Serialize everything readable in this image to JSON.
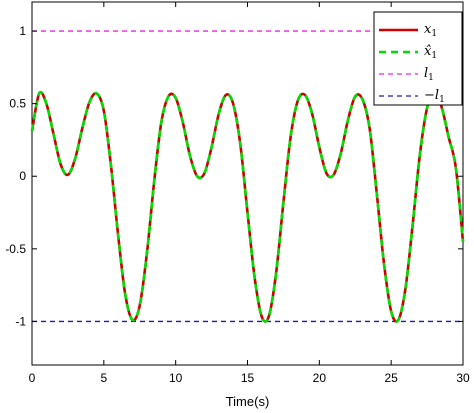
{
  "chart_data": {
    "type": "line",
    "title": "",
    "xlabel": "Time(s)",
    "ylabel": "",
    "xlim": [
      0,
      30
    ],
    "ylim": [
      -1.3,
      1.2
    ],
    "xticks": [
      0,
      5,
      10,
      15,
      20,
      25,
      30
    ],
    "xtick_labels": [
      "0",
      "5",
      "10",
      "15",
      "20",
      "25",
      "30"
    ],
    "yticks": [
      1,
      0.5,
      0,
      -0.5,
      -1
    ],
    "ytick_labels": [
      "1",
      "0.5",
      "0",
      "-0.5",
      "-1"
    ],
    "grid": false,
    "legend_position": "top-right",
    "series": [
      {
        "name": "x1",
        "label_main": "x",
        "label_sub": "1",
        "color": "#cc0000",
        "style": "solid",
        "x": [
          0,
          0.5,
          1,
          1.5,
          2,
          2.5,
          3,
          3.5,
          4,
          4.5,
          5,
          5.5,
          6,
          6.5,
          7,
          7.5,
          8,
          8.5,
          9,
          9.5,
          10,
          10.5,
          11,
          11.5,
          12,
          12.5,
          13,
          13.5,
          14,
          14.5,
          15,
          15.5,
          16,
          16.5,
          17,
          17.5,
          18,
          18.5,
          19,
          19.5,
          20,
          20.5,
          21,
          21.5,
          22,
          22.5,
          23,
          23.5,
          24,
          24.5,
          25,
          25.5,
          26,
          26.5,
          27,
          27.5,
          28,
          28.5,
          29,
          29.5,
          30
        ],
        "values": [
          0.31,
          0.57,
          0.5,
          0.29,
          0.08,
          0.01,
          0.12,
          0.33,
          0.51,
          0.57,
          0.45,
          0.07,
          -0.41,
          -0.82,
          -0.99,
          -0.89,
          -0.53,
          -0.04,
          0.37,
          0.55,
          0.54,
          0.37,
          0.14,
          0.0,
          0.02,
          0.2,
          0.43,
          0.56,
          0.5,
          0.22,
          -0.25,
          -0.7,
          -0.97,
          -0.96,
          -0.66,
          -0.18,
          0.27,
          0.52,
          0.56,
          0.43,
          0.2,
          0.02,
          0.01,
          0.16,
          0.39,
          0.55,
          0.53,
          0.33,
          -0.12,
          -0.6,
          -0.93,
          -0.99,
          -0.77,
          -0.33,
          0.15,
          0.47,
          0.57,
          0.48,
          0.27,
          0.06,
          -0.45
        ]
      },
      {
        "name": "x1_hat",
        "label_main": "x̂",
        "label_sub": "1",
        "color": "#00dd00",
        "style": "dashed",
        "x": [
          0,
          0.5,
          1,
          1.5,
          2,
          2.5,
          3,
          3.5,
          4,
          4.5,
          5,
          5.5,
          6,
          6.5,
          7,
          7.5,
          8,
          8.5,
          9,
          9.5,
          10,
          10.5,
          11,
          11.5,
          12,
          12.5,
          13,
          13.5,
          14,
          14.5,
          15,
          15.5,
          16,
          16.5,
          17,
          17.5,
          18,
          18.5,
          19,
          19.5,
          20,
          20.5,
          21,
          21.5,
          22,
          22.5,
          23,
          23.5,
          24,
          24.5,
          25,
          25.5,
          26,
          26.5,
          27,
          27.5,
          28,
          28.5,
          29,
          29.5,
          30
        ],
        "values": [
          0.31,
          0.57,
          0.5,
          0.29,
          0.08,
          0.01,
          0.12,
          0.33,
          0.51,
          0.57,
          0.45,
          0.07,
          -0.41,
          -0.82,
          -0.99,
          -0.89,
          -0.53,
          -0.04,
          0.37,
          0.55,
          0.54,
          0.37,
          0.14,
          0.0,
          0.02,
          0.2,
          0.43,
          0.56,
          0.5,
          0.22,
          -0.25,
          -0.7,
          -0.97,
          -0.96,
          -0.66,
          -0.18,
          0.27,
          0.52,
          0.56,
          0.43,
          0.2,
          0.02,
          0.01,
          0.16,
          0.39,
          0.55,
          0.53,
          0.33,
          -0.12,
          -0.6,
          -0.93,
          -0.99,
          -0.77,
          -0.33,
          0.15,
          0.47,
          0.57,
          0.48,
          0.27,
          0.06,
          -0.45
        ]
      },
      {
        "name": "l1",
        "label_main": "l",
        "label_sub": "1",
        "color": "#ee22ee",
        "style": "dashed",
        "x": [
          0,
          30
        ],
        "values": [
          1,
          1
        ]
      },
      {
        "name": "-l1",
        "label_main": "−l",
        "label_sub": "1",
        "color": "#1a1aaa",
        "style": "dashed",
        "x": [
          0,
          30
        ],
        "values": [
          -1,
          -1
        ]
      }
    ]
  }
}
